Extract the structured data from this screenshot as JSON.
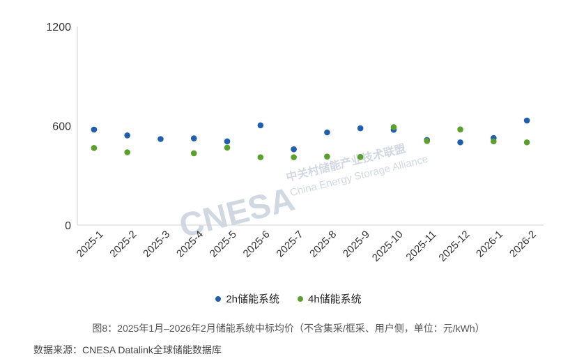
{
  "chart_data": {
    "type": "scatter",
    "categories": [
      "2025-1",
      "2025-2",
      "2025-3",
      "2025-4",
      "2025-5",
      "2025-6",
      "2025-7",
      "2025-8",
      "2025-9",
      "2025-10",
      "2025-11",
      "2025-12",
      "2026-1",
      "2026-2"
    ],
    "series": [
      {
        "name": "2h储能系统",
        "color": "#1f5fae",
        "values": [
          577,
          542,
          520,
          524,
          506,
          603,
          458,
          560,
          585,
          576,
          514,
          500,
          526,
          632
        ]
      },
      {
        "name": "4h储能系统",
        "color": "#5aa02c",
        "values": [
          466,
          440,
          null,
          434,
          468,
          410,
          410,
          414,
          412,
          592,
          508,
          578,
          506,
          500
        ]
      }
    ],
    "yticks": [
      0,
      600,
      1200
    ],
    "ylim": [
      0,
      1200
    ],
    "legend_position": "bottom"
  },
  "watermark": {
    "logo": "CNESA",
    "cn": "中关村储能产业技术联盟",
    "en": "China Energy Storage Alliance"
  },
  "caption": "图8：2025年1月–2026年2月储能系统中标均价（不含集采/框采、用户侧，单位：元/kWh）",
  "source": "数据来源：CNESA Datalink全球储能数据库"
}
